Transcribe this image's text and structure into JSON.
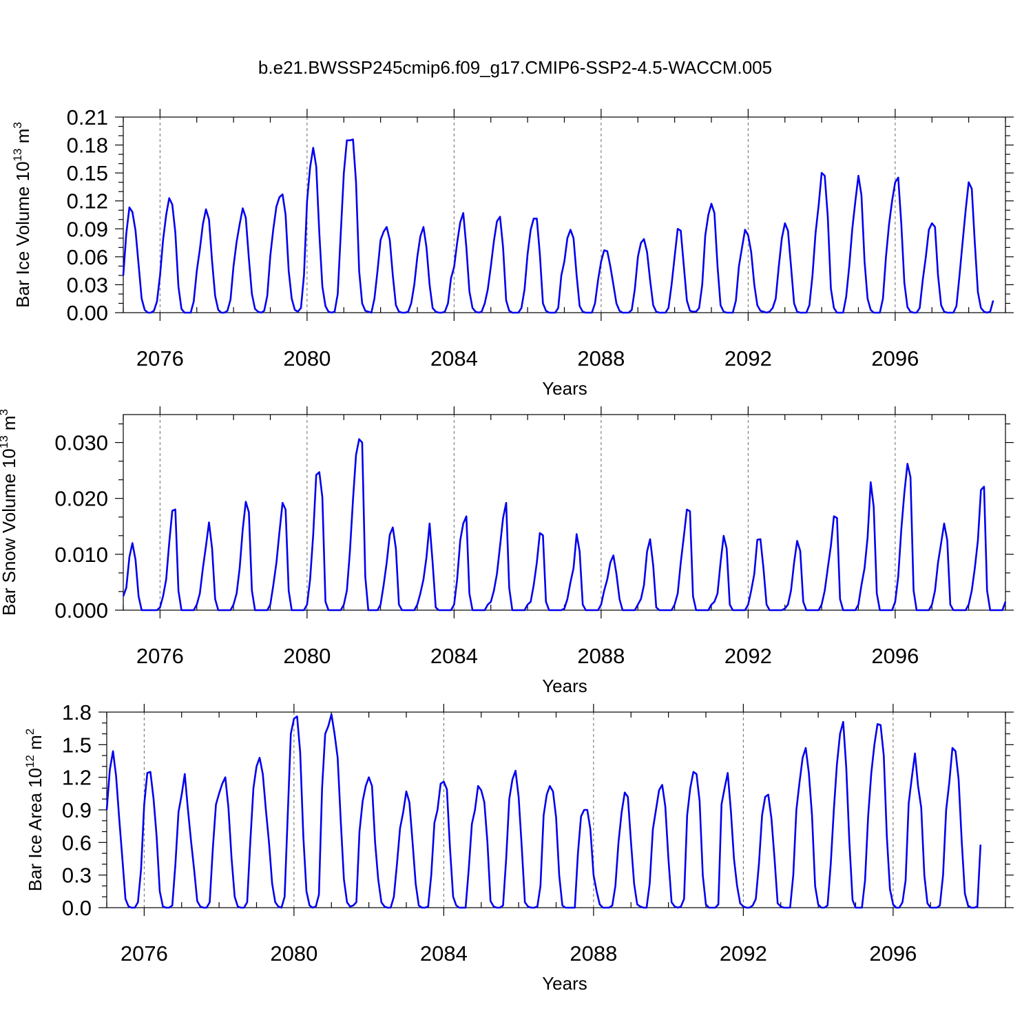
{
  "title": "b.e21.BWSSP245cmip6.f09_g17.CMIP6-SSP2-4.5-WACCM.005",
  "chart_data": [
    {
      "type": "line",
      "title": "",
      "xlabel": "Years",
      "ylabel_main": "Bar Ice Volume 10",
      "ylabel_exp": "13",
      "ylabel_unit": " m",
      "ylabel_unit_exp": "3",
      "xlim": [
        2075,
        2099
      ],
      "ylim": [
        0,
        0.21
      ],
      "yticks": [
        0.0,
        0.03,
        0.06,
        0.09,
        0.12,
        0.15,
        0.18,
        0.21
      ],
      "ytick_labels": [
        "0.00",
        "0.03",
        "0.06",
        "0.09",
        "0.12",
        "0.15",
        "0.18",
        "0.21"
      ],
      "xticks": [
        2076,
        2080,
        2084,
        2088,
        2092,
        2096
      ],
      "xtick_labels": [
        "2076",
        "2080",
        "2084",
        "2088",
        "2092",
        "2096"
      ],
      "grid": "dashed vertical at labelled years",
      "series": [
        {
          "name": "Bar Ice Volume",
          "color": "#0000ee",
          "start_year": 2075,
          "step_months": 1,
          "values": [
            0.04,
            0.085,
            0.113,
            0.108,
            0.088,
            0.052,
            0.015,
            0.003,
            0.0,
            0.0,
            0.002,
            0.012,
            0.04,
            0.078,
            0.105,
            0.123,
            0.116,
            0.086,
            0.028,
            0.004,
            0.0,
            0.0,
            0.0,
            0.012,
            0.045,
            0.068,
            0.095,
            0.111,
            0.1,
            0.055,
            0.018,
            0.003,
            0.0,
            0.0,
            0.002,
            0.014,
            0.05,
            0.076,
            0.095,
            0.112,
            0.102,
            0.058,
            0.02,
            0.004,
            0.001,
            0.0,
            0.002,
            0.018,
            0.061,
            0.09,
            0.114,
            0.124,
            0.127,
            0.105,
            0.045,
            0.015,
            0.003,
            0.001,
            0.005,
            0.04,
            0.12,
            0.156,
            0.177,
            0.157,
            0.085,
            0.028,
            0.007,
            0.001,
            0.0,
            0.001,
            0.02,
            0.085,
            0.15,
            0.185,
            0.185,
            0.186,
            0.14,
            0.045,
            0.01,
            0.002,
            0.001,
            0.0,
            0.015,
            0.045,
            0.078,
            0.087,
            0.092,
            0.078,
            0.04,
            0.008,
            0.001,
            0.0,
            0.0,
            0.001,
            0.01,
            0.03,
            0.06,
            0.082,
            0.092,
            0.07,
            0.03,
            0.005,
            0.001,
            0.0,
            0.0,
            0.001,
            0.01,
            0.037,
            0.049,
            0.075,
            0.097,
            0.107,
            0.07,
            0.023,
            0.005,
            0.001,
            0.0,
            0.001,
            0.01,
            0.025,
            0.05,
            0.077,
            0.098,
            0.103,
            0.07,
            0.013,
            0.002,
            0.0,
            0.0,
            0.0,
            0.005,
            0.025,
            0.063,
            0.089,
            0.101,
            0.101,
            0.063,
            0.01,
            0.002,
            0.0,
            0.0,
            0.0,
            0.005,
            0.04,
            0.055,
            0.08,
            0.089,
            0.08,
            0.04,
            0.007,
            0.001,
            0.0,
            0.0,
            0.0,
            0.01,
            0.035,
            0.055,
            0.067,
            0.066,
            0.05,
            0.03,
            0.01,
            0.002,
            0.0,
            0.0,
            0.0,
            0.003,
            0.025,
            0.06,
            0.075,
            0.079,
            0.065,
            0.035,
            0.008,
            0.001,
            0.0,
            0.0,
            0.0,
            0.005,
            0.03,
            0.06,
            0.09,
            0.088,
            0.05,
            0.013,
            0.002,
            0.001,
            0.001,
            0.005,
            0.03,
            0.083,
            0.105,
            0.117,
            0.107,
            0.05,
            0.008,
            0.001,
            0.0,
            0.0,
            0.0,
            0.013,
            0.05,
            0.07,
            0.089,
            0.083,
            0.065,
            0.03,
            0.008,
            0.002,
            0.001,
            0.0,
            0.001,
            0.005,
            0.015,
            0.05,
            0.08,
            0.096,
            0.088,
            0.05,
            0.01,
            0.001,
            0.0,
            0.0,
            0.0,
            0.008,
            0.04,
            0.085,
            0.115,
            0.15,
            0.147,
            0.103,
            0.026,
            0.005,
            0.0,
            0.0,
            0.0,
            0.017,
            0.05,
            0.09,
            0.12,
            0.147,
            0.126,
            0.055,
            0.015,
            0.003,
            0.0,
            0.0,
            0.0,
            0.015,
            0.06,
            0.095,
            0.12,
            0.14,
            0.145,
            0.095,
            0.032,
            0.006,
            0.001,
            0.0,
            0.0,
            0.005,
            0.035,
            0.06,
            0.089,
            0.096,
            0.092,
            0.04,
            0.008,
            0.001,
            0.0,
            0.0,
            0.0,
            0.007,
            0.04,
            0.075,
            0.11,
            0.14,
            0.133,
            0.075,
            0.022,
            0.005,
            0.001,
            0.0,
            0.001,
            0.013
          ]
        }
      ]
    },
    {
      "type": "line",
      "title": "",
      "xlabel": "Years",
      "ylabel_main": "Bar Snow Volume 10",
      "ylabel_exp": "13",
      "ylabel_unit": " m",
      "ylabel_unit_exp": "3",
      "xlim": [
        2075,
        2099
      ],
      "ylim": [
        0,
        0.035
      ],
      "yticks": [
        0.0,
        0.01,
        0.02,
        0.03
      ],
      "ytick_labels": [
        "0.000",
        "0.010",
        "0.020",
        "0.030"
      ],
      "xticks": [
        2076,
        2080,
        2084,
        2088,
        2092,
        2096
      ],
      "xtick_labels": [
        "2076",
        "2080",
        "2084",
        "2088",
        "2092",
        "2096"
      ],
      "grid": "dashed vertical at labelled years",
      "series": [
        {
          "name": "Bar Snow Volume",
          "color": "#0000ee",
          "start_year": 2075,
          "step_months": 1,
          "values": [
            0.0025,
            0.004,
            0.0095,
            0.012,
            0.009,
            0.0025,
            0.0,
            0.0,
            0.0,
            0.0,
            0.0,
            0.0,
            0.0005,
            0.0025,
            0.0055,
            0.012,
            0.0178,
            0.018,
            0.0035,
            0.0,
            0.0,
            0.0,
            0.0,
            0.0,
            0.001,
            0.003,
            0.0075,
            0.0115,
            0.0157,
            0.011,
            0.002,
            0.0,
            0.0,
            0.0,
            0.0,
            0.0,
            0.001,
            0.003,
            0.0075,
            0.0145,
            0.0194,
            0.0175,
            0.0035,
            0.0,
            0.0,
            0.0,
            0.0,
            0.0,
            0.001,
            0.0045,
            0.0085,
            0.014,
            0.0192,
            0.018,
            0.0035,
            0.0,
            0.0,
            0.0,
            0.0,
            0.0,
            0.001,
            0.0055,
            0.0135,
            0.0242,
            0.0247,
            0.0202,
            0.0015,
            0.0,
            0.0,
            0.0,
            0.0,
            0.0,
            0.001,
            0.0035,
            0.0105,
            0.0198,
            0.0278,
            0.0306,
            0.03,
            0.006,
            0.0,
            0.0,
            0.0,
            0.0,
            0.001,
            0.0045,
            0.0085,
            0.0135,
            0.0148,
            0.011,
            0.001,
            0.0,
            0.0,
            0.0,
            0.0,
            0.0,
            0.001,
            0.003,
            0.0055,
            0.0095,
            0.0155,
            0.0085,
            0.0005,
            0.0,
            0.0,
            0.0,
            0.0,
            0.0,
            0.001,
            0.0055,
            0.0125,
            0.0155,
            0.0168,
            0.003,
            0.0,
            0.0,
            0.0,
            0.0,
            0.0,
            0.001,
            0.0015,
            0.0035,
            0.0065,
            0.0115,
            0.0165,
            0.0192,
            0.004,
            0.0,
            0.0,
            0.0,
            0.0,
            0.0,
            0.001,
            0.0015,
            0.0045,
            0.0085,
            0.0138,
            0.0134,
            0.0015,
            0.0,
            0.0,
            0.0,
            0.0,
            0.0,
            0.0003,
            0.002,
            0.005,
            0.0075,
            0.0136,
            0.0105,
            0.001,
            0.0,
            0.0,
            0.0,
            0.0,
            0.0,
            0.001,
            0.0035,
            0.0055,
            0.0085,
            0.0098,
            0.0065,
            0.002,
            0.0,
            0.0,
            0.0,
            0.0,
            0.0,
            0.001,
            0.002,
            0.0045,
            0.0105,
            0.0127,
            0.008,
            0.0005,
            0.0,
            0.0,
            0.0,
            0.0,
            0.0,
            0.001,
            0.003,
            0.0085,
            0.0132,
            0.018,
            0.0177,
            0.0025,
            0.0,
            0.0,
            0.0,
            0.0,
            0.0,
            0.001,
            0.0015,
            0.003,
            0.0085,
            0.0133,
            0.011,
            0.001,
            0.0,
            0.0,
            0.0,
            0.0,
            0.0,
            0.001,
            0.0035,
            0.0065,
            0.0126,
            0.0127,
            0.0075,
            0.001,
            0.0,
            0.0,
            0.0,
            0.0,
            0.0,
            0.0003,
            0.001,
            0.0035,
            0.0085,
            0.0124,
            0.0106,
            0.0015,
            0.0,
            0.0,
            0.0,
            0.0,
            0.0,
            0.001,
            0.0035,
            0.0075,
            0.0115,
            0.0168,
            0.0165,
            0.002,
            0.0,
            0.0,
            0.0,
            0.0,
            0.0,
            0.001,
            0.0045,
            0.0075,
            0.013,
            0.0229,
            0.0185,
            0.003,
            0.0,
            0.0,
            0.0,
            0.0,
            0.0,
            0.0015,
            0.006,
            0.0145,
            0.021,
            0.0262,
            0.0238,
            0.0035,
            0.0,
            0.0,
            0.0,
            0.0,
            0.0,
            0.001,
            0.0035,
            0.0085,
            0.012,
            0.0155,
            0.0125,
            0.001,
            0.0,
            0.0,
            0.0,
            0.0,
            0.0,
            0.001,
            0.0035,
            0.0075,
            0.0125,
            0.0215,
            0.0221,
            0.0035,
            0.0,
            0.0,
            0.0,
            0.0,
            0.0,
            0.0015
          ]
        }
      ]
    },
    {
      "type": "line",
      "title": "",
      "xlabel": "Years",
      "ylabel_main": "Bar Ice Area 10",
      "ylabel_exp": "12",
      "ylabel_unit": " m",
      "ylabel_unit_exp": "2",
      "xlim": [
        2075,
        2099
      ],
      "ylim": [
        0,
        1.8
      ],
      "yticks": [
        0.0,
        0.3,
        0.6,
        0.9,
        1.2,
        1.5,
        1.8
      ],
      "ytick_labels": [
        "0.0",
        "0.3",
        "0.6",
        "0.9",
        "1.2",
        "1.5",
        "1.8"
      ],
      "xticks": [
        2076,
        2080,
        2084,
        2088,
        2092,
        2096
      ],
      "xtick_labels": [
        "2076",
        "2080",
        "2084",
        "2088",
        "2092",
        "2096"
      ],
      "grid": "dashed vertical at labelled years",
      "series": [
        {
          "name": "Bar Ice Area",
          "color": "#0000ee",
          "start_year": 2075,
          "step_months": 1,
          "values": [
            0.9,
            1.27,
            1.44,
            1.21,
            0.82,
            0.45,
            0.08,
            0.01,
            0.0,
            0.0,
            0.05,
            0.35,
            0.95,
            1.24,
            1.25,
            1.0,
            0.65,
            0.15,
            0.01,
            0.0,
            0.0,
            0.02,
            0.4,
            0.88,
            1.04,
            1.23,
            0.91,
            0.62,
            0.35,
            0.06,
            0.01,
            0.0,
            0.0,
            0.05,
            0.55,
            0.95,
            1.05,
            1.14,
            1.2,
            0.92,
            0.45,
            0.1,
            0.01,
            0.0,
            0.0,
            0.05,
            0.6,
            1.1,
            1.3,
            1.38,
            1.23,
            0.9,
            0.6,
            0.22,
            0.05,
            0.01,
            0.0,
            0.1,
            0.85,
            1.6,
            1.74,
            1.76,
            1.43,
            0.65,
            0.15,
            0.02,
            0.0,
            0.01,
            0.12,
            1.1,
            1.6,
            1.67,
            1.78,
            1.6,
            1.38,
            0.8,
            0.26,
            0.05,
            0.01,
            0.02,
            0.05,
            0.7,
            0.98,
            1.12,
            1.2,
            1.12,
            0.6,
            0.26,
            0.05,
            0.01,
            0.0,
            0.0,
            0.1,
            0.4,
            0.73,
            0.88,
            1.07,
            0.97,
            0.6,
            0.22,
            0.02,
            0.0,
            0.0,
            0.01,
            0.3,
            0.78,
            0.9,
            1.14,
            1.16,
            1.09,
            0.55,
            0.1,
            0.02,
            0.0,
            0.0,
            0.0,
            0.35,
            0.77,
            0.9,
            1.12,
            1.08,
            0.97,
            0.6,
            0.06,
            0.01,
            0.0,
            0.0,
            0.02,
            0.45,
            1.0,
            1.18,
            1.26,
            1.02,
            0.55,
            0.05,
            0.01,
            0.0,
            0.0,
            0.01,
            0.2,
            0.85,
            1.04,
            1.12,
            1.07,
            0.83,
            0.3,
            0.02,
            0.0,
            0.0,
            0.0,
            0.0,
            0.5,
            0.84,
            0.9,
            0.9,
            0.72,
            0.3,
            0.15,
            0.03,
            0.0,
            0.0,
            0.0,
            0.02,
            0.2,
            0.6,
            0.88,
            1.06,
            1.02,
            0.6,
            0.22,
            0.03,
            0.01,
            0.0,
            0.0,
            0.22,
            0.72,
            0.9,
            1.08,
            1.13,
            0.93,
            0.45,
            0.05,
            0.01,
            0.0,
            0.01,
            0.08,
            0.85,
            1.1,
            1.25,
            1.23,
            0.98,
            0.3,
            0.03,
            0.0,
            0.0,
            0.0,
            0.03,
            0.95,
            1.1,
            1.24,
            0.9,
            0.45,
            0.2,
            0.04,
            0.01,
            0.0,
            0.0,
            0.02,
            0.08,
            0.4,
            0.85,
            1.02,
            1.04,
            0.82,
            0.45,
            0.04,
            0.01,
            0.0,
            0.0,
            0.0,
            0.3,
            0.9,
            1.15,
            1.38,
            1.47,
            1.24,
            0.85,
            0.2,
            0.03,
            0.0,
            0.0,
            0.02,
            0.4,
            0.9,
            1.32,
            1.6,
            1.71,
            1.28,
            0.6,
            0.07,
            0.0,
            0.0,
            0.0,
            0.25,
            0.84,
            1.24,
            1.5,
            1.69,
            1.68,
            1.4,
            0.65,
            0.17,
            0.03,
            0.0,
            0.0,
            0.05,
            0.25,
            0.96,
            1.2,
            1.42,
            1.12,
            0.92,
            0.3,
            0.04,
            0.0,
            0.0,
            0.0,
            0.02,
            0.3,
            0.9,
            1.15,
            1.47,
            1.44,
            1.18,
            0.6,
            0.13,
            0.02,
            0.0,
            0.0,
            0.01,
            0.58
          ]
        }
      ]
    }
  ]
}
